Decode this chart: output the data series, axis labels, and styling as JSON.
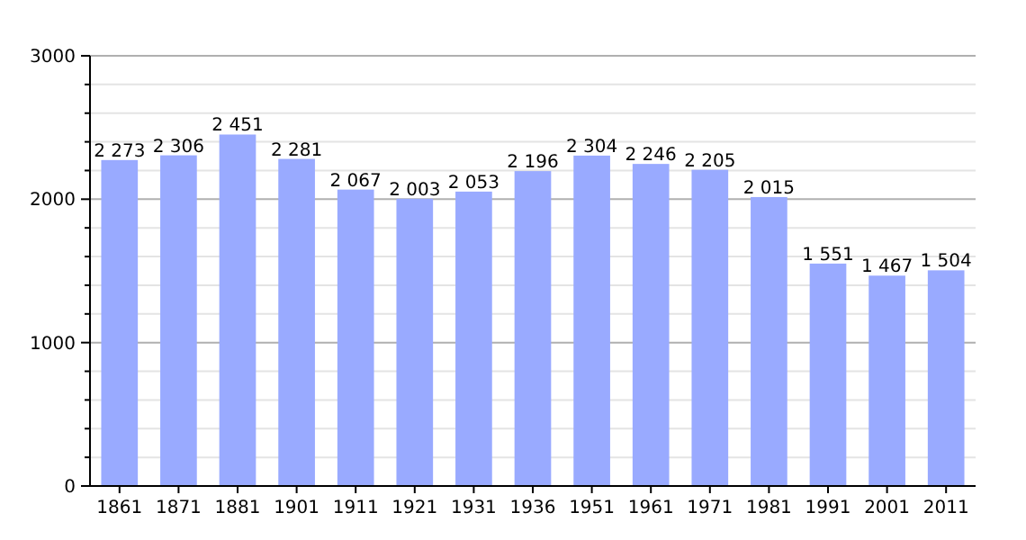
{
  "chart_data": {
    "type": "bar",
    "categories": [
      "1861",
      "1871",
      "1881",
      "1901",
      "1911",
      "1921",
      "1931",
      "1936",
      "1951",
      "1961",
      "1971",
      "1981",
      "1991",
      "2001",
      "2011"
    ],
    "values": [
      2273,
      2306,
      2451,
      2281,
      2067,
      2003,
      2053,
      2196,
      2304,
      2246,
      2205,
      2015,
      1551,
      1467,
      1504
    ],
    "value_labels": [
      "2 273",
      "2 306",
      "2 451",
      "2 281",
      "2 067",
      "2 003",
      "2 053",
      "2 196",
      "2 304",
      "2 246",
      "2 205",
      "2 015",
      "1 551",
      "1 467",
      "1 504"
    ],
    "color": "#99aaff",
    "ylim": [
      0,
      3000
    ],
    "yticks": [
      0,
      {
        "value": 200,
        "label": null
      },
      {
        "value": 400,
        "label": null
      },
      {
        "value": 600,
        "label": null
      },
      {
        "value": 800,
        "label": null
      },
      1000,
      {
        "value": 1200,
        "label": null
      },
      {
        "value": 1400,
        "label": null
      },
      {
        "value": 1600,
        "label": null
      },
      {
        "value": 1800,
        "label": null
      },
      2000,
      {
        "value": 2200,
        "label": null
      },
      {
        "value": 2400,
        "label": null
      },
      {
        "value": 2600,
        "label": null
      },
      {
        "value": 2800,
        "label": null
      },
      3000
    ],
    "grid": true
  }
}
